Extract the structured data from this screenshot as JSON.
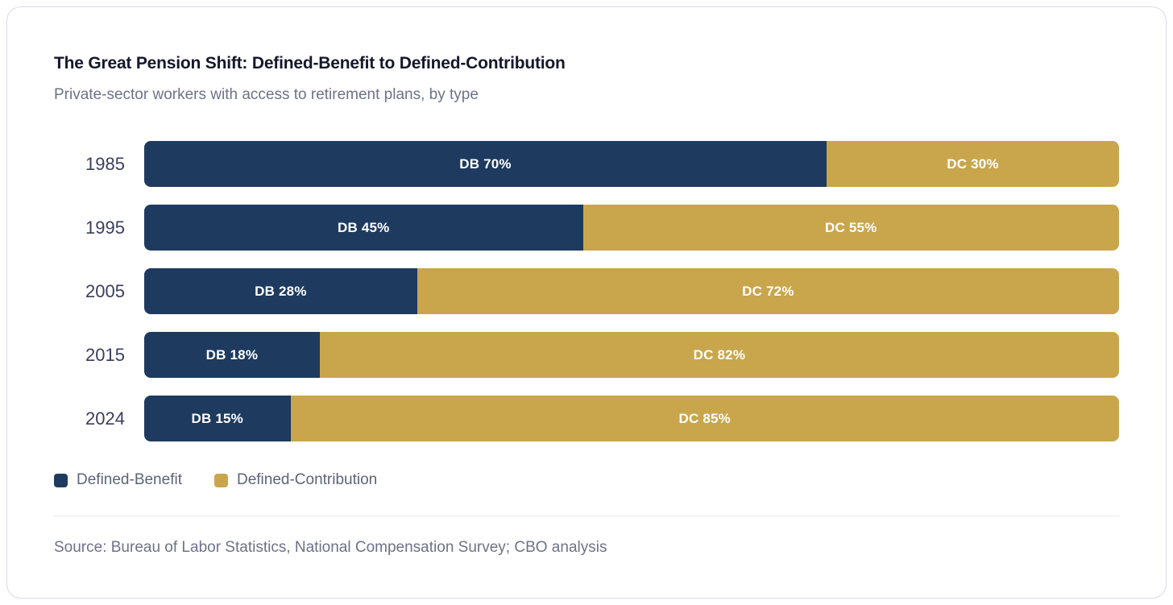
{
  "card": {
    "title": "The Great Pension Shift: Defined-Benefit to Defined-Contribution",
    "subtitle": "Private-sector workers with access to retirement plans, by type",
    "source": "Source: Bureau of Labor Statistics, National Compensation Survey; CBO analysis"
  },
  "colors": {
    "db": "#1E3A5F",
    "dc": "#C9A64C"
  },
  "legend": {
    "items": [
      {
        "label": "Defined-Benefit",
        "color": "#1E3A5F"
      },
      {
        "label": "Defined-Contribution",
        "color": "#C9A64C"
      }
    ]
  },
  "chart_data": {
    "type": "bar",
    "orientation": "horizontal",
    "stacked": true,
    "stack_total": 100,
    "title": "The Great Pension Shift: Defined-Benefit to Defined-Contribution",
    "subtitle": "Private-sector workers with access to retirement plans, by type",
    "categories": [
      "1985",
      "1995",
      "2005",
      "2015",
      "2024"
    ],
    "series": [
      {
        "name": "Defined-Benefit",
        "abbrev": "DB",
        "color": "#1E3A5F",
        "values": [
          70,
          45,
          28,
          18,
          15
        ]
      },
      {
        "name": "Defined-Contribution",
        "abbrev": "DC",
        "color": "#C9A64C",
        "values": [
          30,
          55,
          72,
          82,
          85
        ]
      }
    ],
    "legend_position": "bottom",
    "grid": false,
    "axes_visible": false,
    "rows": [
      {
        "year": "1985",
        "db_pct": 70,
        "dc_pct": 30,
        "db_label": "DB 70%",
        "dc_label": "DC 30%"
      },
      {
        "year": "1995",
        "db_pct": 45,
        "dc_pct": 55,
        "db_label": "DB 45%",
        "dc_label": "DC 55%"
      },
      {
        "year": "2005",
        "db_pct": 28,
        "dc_pct": 72,
        "db_label": "DB 28%",
        "dc_label": "DC 72%"
      },
      {
        "year": "2015",
        "db_pct": 18,
        "dc_pct": 82,
        "db_label": "DB 18%",
        "dc_label": "DC 82%"
      },
      {
        "year": "2024",
        "db_pct": 15,
        "dc_pct": 85,
        "db_label": "DB 15%",
        "dc_label": "DC 85%"
      }
    ]
  }
}
